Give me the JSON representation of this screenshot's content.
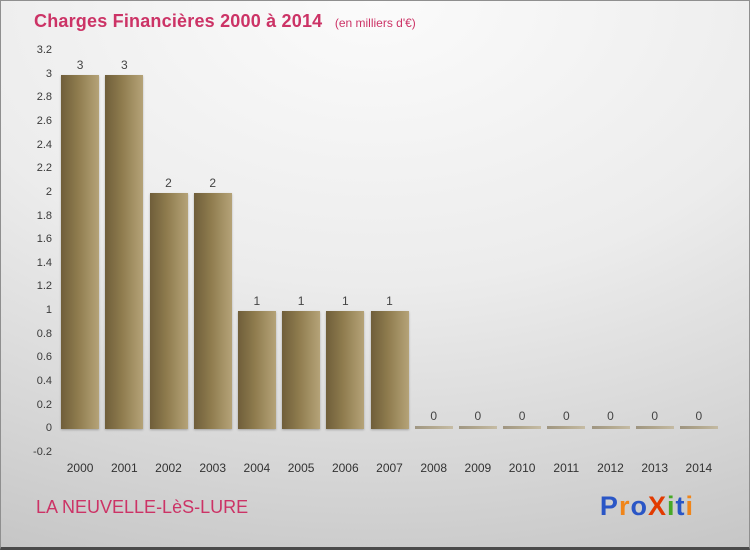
{
  "header": {
    "title": "Charges Financières 2000 à 2014",
    "subtitle": "(en milliers d'€)"
  },
  "chart_data": {
    "type": "bar",
    "categories": [
      "2000",
      "2001",
      "2002",
      "2003",
      "2004",
      "2005",
      "2006",
      "2007",
      "2008",
      "2009",
      "2010",
      "2011",
      "2012",
      "2013",
      "2014"
    ],
    "values": [
      3,
      3,
      2,
      2,
      1,
      1,
      1,
      1,
      0,
      0,
      0,
      0,
      0,
      0,
      0
    ],
    "title": "Charges Financières 2000 à 2014",
    "subtitle": "(en milliers d'€)",
    "xlabel": "",
    "ylabel": "",
    "ylim": [
      -0.2,
      3.2
    ],
    "ytick_step": 0.2,
    "grid": false,
    "legend": "none",
    "bar_color_dark": "#6f5e3a",
    "bar_color_light": "#b5a378",
    "value_label_color": "#444444",
    "axis_text_color": "#3a3a3a"
  },
  "footer": {
    "company": "LA NEUVELLE-LèS-LURE",
    "logo_letters": [
      {
        "ch": "P",
        "color": "#2a56c6"
      },
      {
        "ch": "r",
        "color": "#f08519"
      },
      {
        "ch": "o",
        "color": "#2a56c6"
      },
      {
        "ch": "X",
        "color": "#e23a00"
      },
      {
        "ch": "i",
        "color": "#46a926"
      },
      {
        "ch": "t",
        "color": "#2a56c6"
      },
      {
        "ch": "i",
        "color": "#f08519"
      }
    ]
  },
  "colors": {
    "accent_pink": "#cc3366",
    "background_top": "#fbfbfb",
    "background_bottom": "#c2c2c2"
  }
}
